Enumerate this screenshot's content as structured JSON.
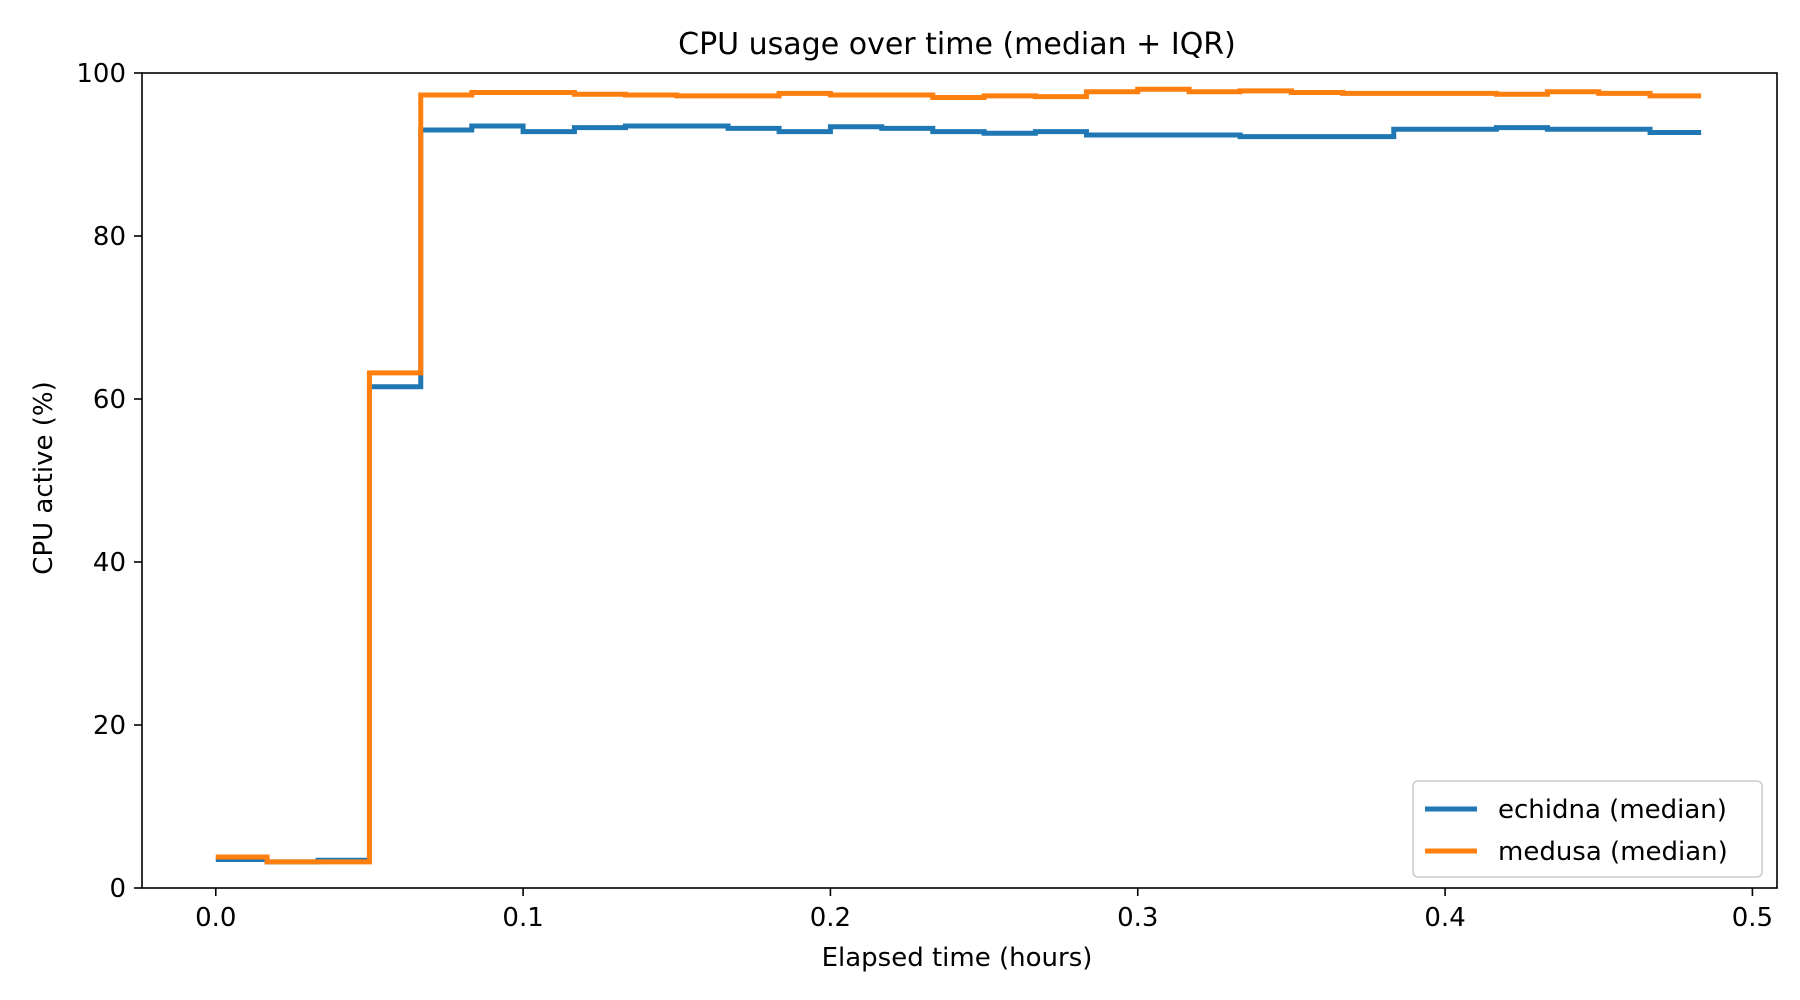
{
  "chart_data": {
    "type": "line",
    "step": true,
    "title": "CPU usage over time (median + IQR)",
    "xlabel": "Elapsed time (hours)",
    "ylabel": "CPU active (%)",
    "xlim": [
      -0.024,
      0.508
    ],
    "ylim": [
      0,
      100
    ],
    "xticks": [
      0.0,
      0.1,
      0.2,
      0.3,
      0.4,
      0.5
    ],
    "xtick_labels": [
      "0.0",
      "0.1",
      "0.2",
      "0.3",
      "0.4",
      "0.5"
    ],
    "yticks": [
      0,
      20,
      40,
      60,
      80,
      100
    ],
    "ytick_labels": [
      "0",
      "20",
      "40",
      "60",
      "80",
      "100"
    ],
    "grid": false,
    "legend_position": "bottom-right",
    "x": [
      0.0,
      0.0167,
      0.0333,
      0.05,
      0.0667,
      0.0833,
      0.1,
      0.1167,
      0.1333,
      0.15,
      0.1667,
      0.1833,
      0.2,
      0.2167,
      0.2333,
      0.25,
      0.2667,
      0.2833,
      0.3,
      0.3167,
      0.3333,
      0.35,
      0.3667,
      0.3833,
      0.4,
      0.4167,
      0.4333,
      0.45,
      0.4667,
      0.4833
    ],
    "series": [
      {
        "name": "echidna (median)",
        "color": "#1f77b4",
        "values": [
          3.5,
          3.2,
          3.4,
          61.5,
          93.0,
          93.5,
          92.8,
          93.3,
          93.5,
          93.5,
          93.2,
          92.8,
          93.4,
          93.2,
          92.8,
          92.6,
          92.8,
          92.4,
          92.4,
          92.4,
          92.2,
          92.2,
          92.2,
          93.1,
          93.1,
          93.3,
          93.1,
          93.1,
          92.7,
          92.7
        ]
      },
      {
        "name": "medusa (median)",
        "color": "#ff7f0e",
        "values": [
          3.8,
          3.2,
          3.2,
          63.2,
          97.3,
          97.6,
          97.6,
          97.4,
          97.3,
          97.2,
          97.2,
          97.5,
          97.3,
          97.3,
          97.0,
          97.2,
          97.1,
          97.7,
          98.0,
          97.7,
          97.8,
          97.6,
          97.5,
          97.5,
          97.5,
          97.4,
          97.7,
          97.5,
          97.2,
          97.2
        ]
      }
    ]
  }
}
